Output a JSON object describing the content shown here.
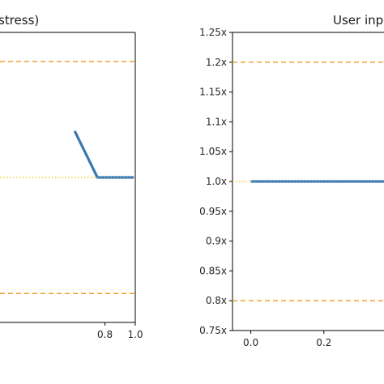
{
  "chart_data": [
    {
      "type": "line",
      "title": "stress)",
      "xlabel": "",
      "ylabel": "",
      "xlim": [
        0.0,
        1.0
      ],
      "ylim": [
        0.75,
        1.25
      ],
      "x_ticks": [
        "0.8",
        "1.0"
      ],
      "y_ticks": [],
      "grid": false,
      "reference_lines": {
        "upper_bound": 1.2,
        "lower_bound": 0.8,
        "baseline": 1.0
      },
      "series": [
        {
          "x": [
            0.6,
            0.75,
            0.99
          ],
          "y": [
            1.08,
            1.0,
            1.0
          ]
        }
      ],
      "colors": {
        "line": "#3a77b0",
        "bound": "#f0a030",
        "baseline": "#f2c500",
        "overlay": "#8fb6cc"
      }
    },
    {
      "type": "line",
      "title": "User inp",
      "xlabel": "",
      "ylabel": "",
      "xlim": [
        -0.05,
        0.4
      ],
      "ylim": [
        0.75,
        1.25
      ],
      "x_ticks": [
        "0.0",
        "0.2"
      ],
      "y_ticks": [
        "1.25x",
        "1.2x",
        "1.15x",
        "1.1x",
        "1.05x",
        "1.0x",
        "0.95x",
        "0.9x",
        "0.85x",
        "0.8x",
        "0.75x"
      ],
      "grid": false,
      "reference_lines": {
        "upper_bound": 1.2,
        "lower_bound": 0.8,
        "baseline": 1.0
      },
      "series": [
        {
          "x": [
            0.0,
            0.4
          ],
          "y": [
            1.0,
            1.0
          ]
        }
      ],
      "colors": {
        "line": "#3a77b0",
        "bound": "#f0a030",
        "baseline": "#f2c500",
        "overlay": "#8fb6cc"
      }
    }
  ]
}
